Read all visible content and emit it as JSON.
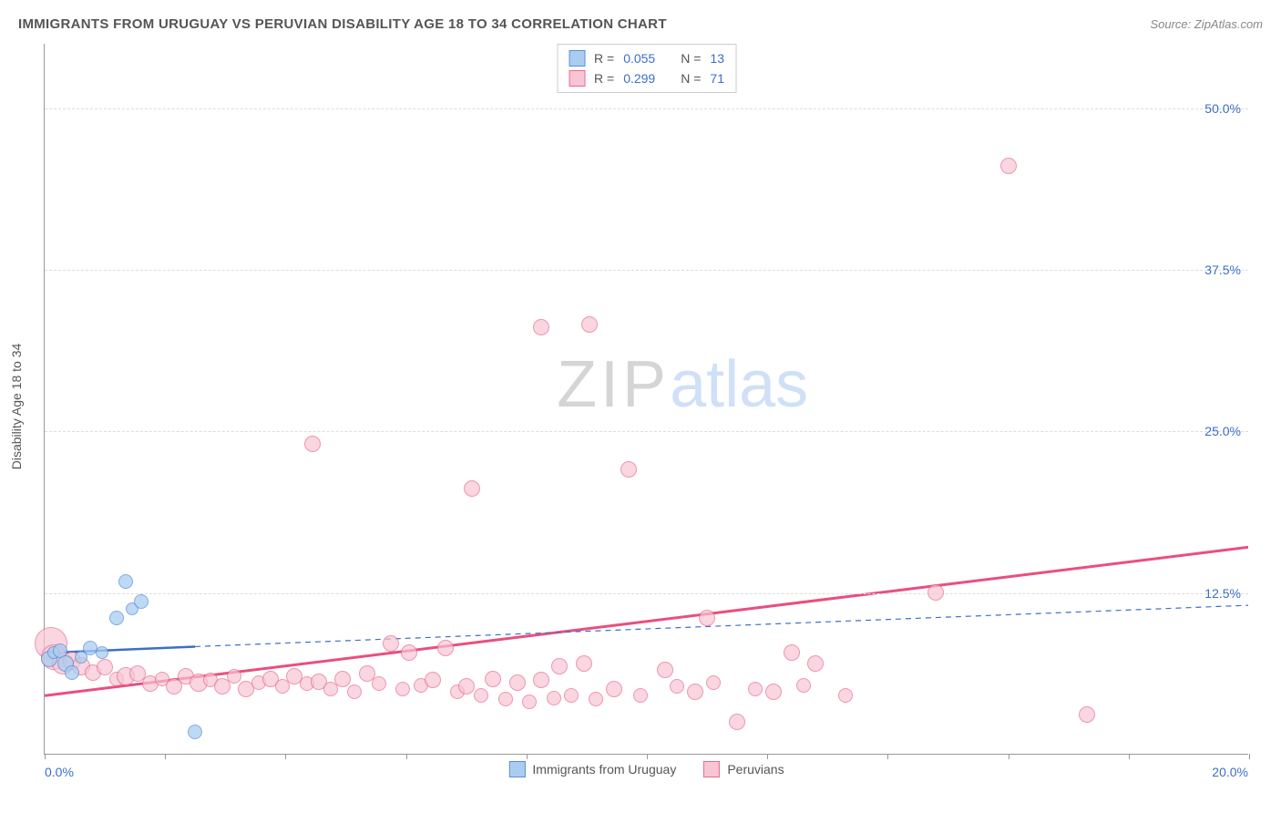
{
  "header": {
    "title": "IMMIGRANTS FROM URUGUAY VS PERUVIAN DISABILITY AGE 18 TO 34 CORRELATION CHART",
    "source": "Source: ZipAtlas.com"
  },
  "chart": {
    "type": "scatter",
    "ylabel": "Disability Age 18 to 34",
    "xlim": [
      0,
      20
    ],
    "ylim": [
      0,
      55
    ],
    "xtick_positions": [
      0,
      2,
      4,
      6,
      8,
      10,
      12,
      14,
      16,
      18,
      20
    ],
    "xtick_labels": {
      "left": "0.0%",
      "right": "20.0%"
    },
    "ytick_positions": [
      12.5,
      25.0,
      37.5,
      50.0
    ],
    "ytick_labels": [
      "12.5%",
      "25.0%",
      "37.5%",
      "50.0%"
    ],
    "ytick_color": "#3b6fc9",
    "xtick_color": "#3b6fc9",
    "grid_color": "#dddddd",
    "axis_color": "#999999",
    "background_color": "#ffffff",
    "watermark": {
      "zip": "ZIP",
      "atlas": "atlas"
    },
    "series": {
      "uruguay": {
        "label": "Immigrants from Uruguay",
        "fill": "#a9cdf0",
        "stroke": "#5b8fd6",
        "opacity": 0.75,
        "r_value": "0.055",
        "n_value": "13",
        "trend": {
          "x1": 0,
          "y1": 7.8,
          "x2": 2.5,
          "y2": 8.3,
          "solid_until_x": 2.5,
          "dashed_to_x": 20,
          "dashed_to_y": 11.5,
          "color": "#3b6fc9",
          "width_solid": 2.5,
          "width_dashed": 1.2
        },
        "points": [
          {
            "x": 0.08,
            "y": 7.3,
            "r": 9
          },
          {
            "x": 0.15,
            "y": 7.8,
            "r": 7
          },
          {
            "x": 0.25,
            "y": 8.0,
            "r": 8
          },
          {
            "x": 0.35,
            "y": 7.0,
            "r": 9
          },
          {
            "x": 0.45,
            "y": 6.3,
            "r": 8
          },
          {
            "x": 0.6,
            "y": 7.5,
            "r": 7
          },
          {
            "x": 0.75,
            "y": 8.2,
            "r": 8
          },
          {
            "x": 0.95,
            "y": 7.8,
            "r": 7
          },
          {
            "x": 1.2,
            "y": 10.5,
            "r": 8
          },
          {
            "x": 1.35,
            "y": 13.3,
            "r": 8
          },
          {
            "x": 1.45,
            "y": 11.2,
            "r": 7
          },
          {
            "x": 1.6,
            "y": 11.8,
            "r": 8
          },
          {
            "x": 2.5,
            "y": 1.7,
            "r": 8
          }
        ]
      },
      "peruvians": {
        "label": "Peruvians",
        "fill": "#f7c5d3",
        "stroke": "#e86a91",
        "opacity": 0.7,
        "r_value": "0.299",
        "n_value": "71",
        "trend": {
          "x1": 0,
          "y1": 4.5,
          "x2": 20,
          "y2": 16.0,
          "color": "#e94f7e",
          "width": 3
        },
        "points": [
          {
            "x": 0.1,
            "y": 8.5,
            "r": 18
          },
          {
            "x": 0.15,
            "y": 7.5,
            "r": 14
          },
          {
            "x": 0.3,
            "y": 7.0,
            "r": 12
          },
          {
            "x": 0.45,
            "y": 7.2,
            "r": 10
          },
          {
            "x": 0.6,
            "y": 6.8,
            "r": 10
          },
          {
            "x": 0.8,
            "y": 6.3,
            "r": 9
          },
          {
            "x": 1.0,
            "y": 6.7,
            "r": 9
          },
          {
            "x": 1.2,
            "y": 5.8,
            "r": 8
          },
          {
            "x": 1.35,
            "y": 6.0,
            "r": 10
          },
          {
            "x": 1.55,
            "y": 6.2,
            "r": 9
          },
          {
            "x": 1.75,
            "y": 5.4,
            "r": 9
          },
          {
            "x": 1.95,
            "y": 5.8,
            "r": 8
          },
          {
            "x": 2.15,
            "y": 5.2,
            "r": 9
          },
          {
            "x": 2.35,
            "y": 6.0,
            "r": 9
          },
          {
            "x": 2.55,
            "y": 5.5,
            "r": 10
          },
          {
            "x": 2.75,
            "y": 5.7,
            "r": 8
          },
          {
            "x": 2.95,
            "y": 5.2,
            "r": 9
          },
          {
            "x": 3.15,
            "y": 6.0,
            "r": 8
          },
          {
            "x": 3.35,
            "y": 5.0,
            "r": 9
          },
          {
            "x": 3.55,
            "y": 5.5,
            "r": 8
          },
          {
            "x": 3.75,
            "y": 5.8,
            "r": 9
          },
          {
            "x": 3.95,
            "y": 5.2,
            "r": 8
          },
          {
            "x": 4.15,
            "y": 6.0,
            "r": 9
          },
          {
            "x": 4.35,
            "y": 5.4,
            "r": 8
          },
          {
            "x": 4.45,
            "y": 24.0,
            "r": 9
          },
          {
            "x": 4.55,
            "y": 5.6,
            "r": 9
          },
          {
            "x": 4.75,
            "y": 5.0,
            "r": 8
          },
          {
            "x": 4.95,
            "y": 5.8,
            "r": 9
          },
          {
            "x": 5.15,
            "y": 4.8,
            "r": 8
          },
          {
            "x": 5.35,
            "y": 6.2,
            "r": 9
          },
          {
            "x": 5.55,
            "y": 5.4,
            "r": 8
          },
          {
            "x": 5.75,
            "y": 8.5,
            "r": 9
          },
          {
            "x": 5.95,
            "y": 5.0,
            "r": 8
          },
          {
            "x": 6.05,
            "y": 7.8,
            "r": 9
          },
          {
            "x": 6.25,
            "y": 5.3,
            "r": 8
          },
          {
            "x": 6.45,
            "y": 5.7,
            "r": 9
          },
          {
            "x": 6.65,
            "y": 8.2,
            "r": 9
          },
          {
            "x": 6.85,
            "y": 4.8,
            "r": 8
          },
          {
            "x": 7.0,
            "y": 5.2,
            "r": 9
          },
          {
            "x": 7.1,
            "y": 20.5,
            "r": 9
          },
          {
            "x": 7.25,
            "y": 4.5,
            "r": 8
          },
          {
            "x": 7.45,
            "y": 5.8,
            "r": 9
          },
          {
            "x": 7.65,
            "y": 4.2,
            "r": 8
          },
          {
            "x": 7.85,
            "y": 5.5,
            "r": 9
          },
          {
            "x": 8.05,
            "y": 4.0,
            "r": 8
          },
          {
            "x": 8.25,
            "y": 5.7,
            "r": 9
          },
          {
            "x": 8.25,
            "y": 33.0,
            "r": 9
          },
          {
            "x": 8.45,
            "y": 4.3,
            "r": 8
          },
          {
            "x": 8.55,
            "y": 6.8,
            "r": 9
          },
          {
            "x": 8.75,
            "y": 4.5,
            "r": 8
          },
          {
            "x": 8.95,
            "y": 7.0,
            "r": 9
          },
          {
            "x": 9.05,
            "y": 33.2,
            "r": 9
          },
          {
            "x": 9.15,
            "y": 4.2,
            "r": 8
          },
          {
            "x": 9.45,
            "y": 5.0,
            "r": 9
          },
          {
            "x": 9.7,
            "y": 22.0,
            "r": 9
          },
          {
            "x": 9.9,
            "y": 4.5,
            "r": 8
          },
          {
            "x": 10.3,
            "y": 6.5,
            "r": 9
          },
          {
            "x": 10.5,
            "y": 5.2,
            "r": 8
          },
          {
            "x": 10.8,
            "y": 4.8,
            "r": 9
          },
          {
            "x": 11.0,
            "y": 10.5,
            "r": 9
          },
          {
            "x": 11.1,
            "y": 5.5,
            "r": 8
          },
          {
            "x": 11.5,
            "y": 2.5,
            "r": 9
          },
          {
            "x": 11.8,
            "y": 5.0,
            "r": 8
          },
          {
            "x": 12.1,
            "y": 4.8,
            "r": 9
          },
          {
            "x": 12.4,
            "y": 7.8,
            "r": 9
          },
          {
            "x": 12.6,
            "y": 5.3,
            "r": 8
          },
          {
            "x": 12.8,
            "y": 7.0,
            "r": 9
          },
          {
            "x": 13.3,
            "y": 4.5,
            "r": 8
          },
          {
            "x": 14.8,
            "y": 12.5,
            "r": 9
          },
          {
            "x": 16.0,
            "y": 45.5,
            "r": 9
          },
          {
            "x": 17.3,
            "y": 3.0,
            "r": 9
          }
        ]
      }
    }
  },
  "stats_legend": {
    "r_label": "R =",
    "n_label": "N ="
  }
}
